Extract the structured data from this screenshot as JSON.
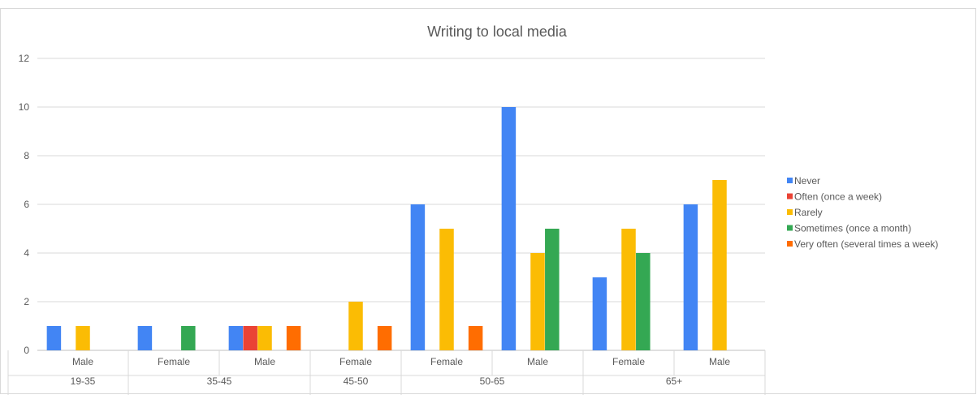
{
  "chart_data": {
    "type": "bar",
    "title": "Writing to local media",
    "xlabel": "",
    "ylabel": "",
    "ylim": [
      0,
      12
    ],
    "yticks": [
      0,
      2,
      4,
      6,
      8,
      10,
      12
    ],
    "grid": true,
    "legend_position": "right",
    "categories": [
      {
        "group": "19-35",
        "sub": "Male"
      },
      {
        "group": "35-45",
        "sub": "Female"
      },
      {
        "group": "35-45",
        "sub": "Male"
      },
      {
        "group": "45-50",
        "sub": "Female"
      },
      {
        "group": "50-65",
        "sub": "Female"
      },
      {
        "group": "50-65",
        "sub": "Male"
      },
      {
        "group": "65+",
        "sub": "Female"
      },
      {
        "group": "65+",
        "sub": "Male"
      }
    ],
    "groups": [
      {
        "label": "19-35",
        "count": 1
      },
      {
        "label": "35-45",
        "count": 2
      },
      {
        "label": "45-50",
        "count": 1
      },
      {
        "label": "50-65",
        "count": 2
      },
      {
        "label": "65+",
        "count": 2
      }
    ],
    "series": [
      {
        "name": "Never",
        "color": "#4285f4",
        "values": [
          1,
          1,
          1,
          0,
          6,
          10,
          3,
          6
        ]
      },
      {
        "name": "Often (once a week)",
        "color": "#ea4335",
        "values": [
          0,
          0,
          1,
          0,
          0,
          0,
          0,
          0
        ]
      },
      {
        "name": "Rarely",
        "color": "#fbbc04",
        "values": [
          1,
          0,
          1,
          2,
          5,
          4,
          5,
          7
        ]
      },
      {
        "name": "Sometimes (once a month)",
        "color": "#34a853",
        "values": [
          0,
          1,
          0,
          0,
          0,
          5,
          4,
          0
        ]
      },
      {
        "name": "Very often (several times a week)",
        "color": "#ff6d01",
        "values": [
          0,
          0,
          1,
          1,
          1,
          0,
          0,
          0
        ]
      }
    ]
  }
}
